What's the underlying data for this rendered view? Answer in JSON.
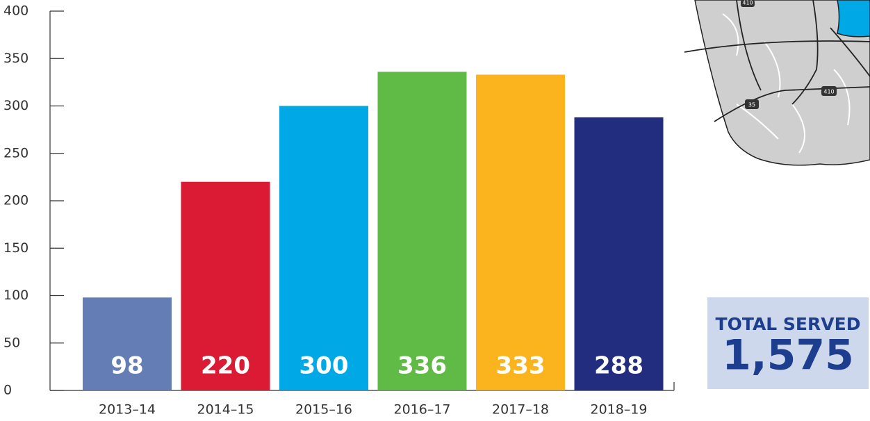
{
  "chart_data": {
    "type": "bar",
    "categories": [
      "2013–14",
      "2014–15",
      "2015–16",
      "2016–17",
      "2017–18",
      "2018–19"
    ],
    "values": [
      98,
      220,
      300,
      336,
      333,
      288
    ],
    "colors": [
      "#647db5",
      "#db1a33",
      "#00a9e6",
      "#5fba46",
      "#fbb41d",
      "#222d7f"
    ],
    "ylim": [
      0,
      400
    ],
    "yticks": [
      0,
      50,
      100,
      150,
      200,
      250,
      300,
      350,
      400
    ],
    "total_title": "TOTAL SERVED",
    "total": {
      "value": 1575,
      "label": "1,575"
    }
  },
  "map": {
    "labels": [
      "410",
      "410",
      "35"
    ]
  }
}
